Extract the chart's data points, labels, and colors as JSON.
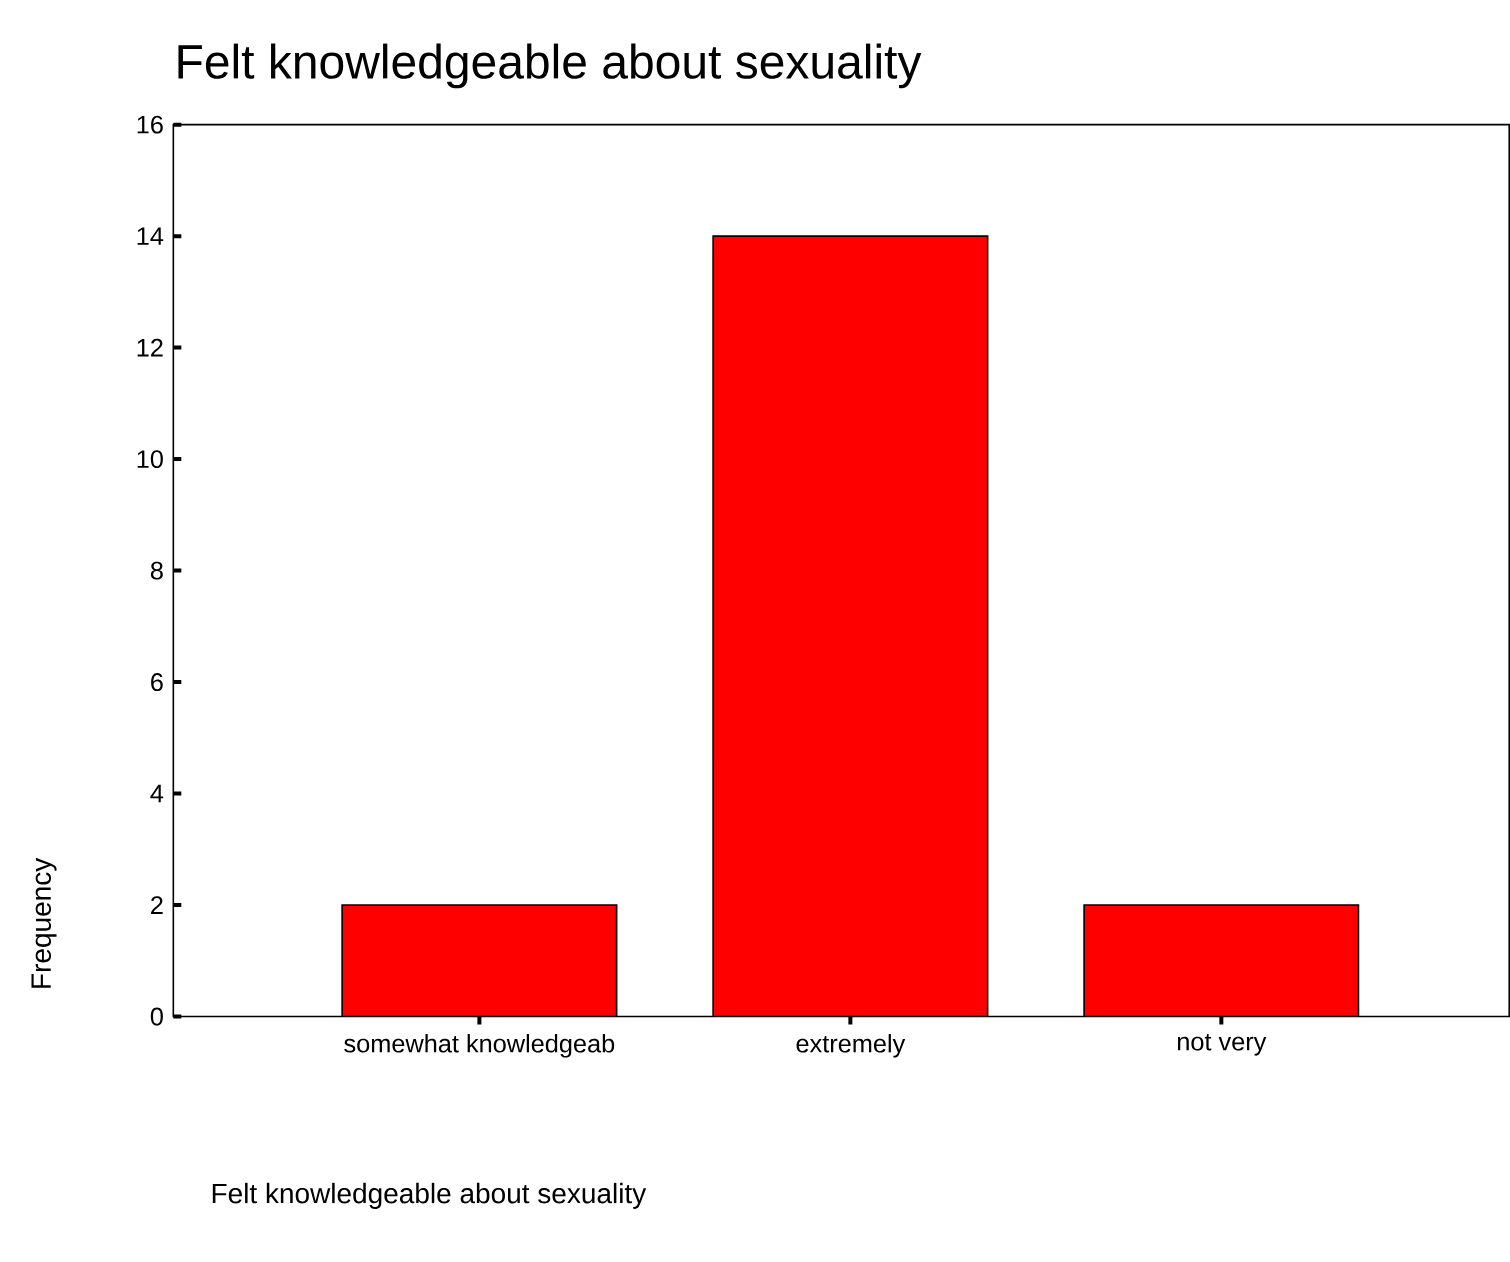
{
  "chart_data": {
    "type": "bar",
    "title": "Felt knowledgeable about sexuality",
    "xlabel": "Felt knowledgeable about sexuality",
    "ylabel": "Frequency",
    "categories": [
      "somewhat knowledgeab",
      "extremely",
      "not very"
    ],
    "values": [
      2,
      14,
      2
    ],
    "color": "#ff0000",
    "ylim": [
      0,
      16
    ],
    "yticks": [
      0,
      2,
      4,
      6,
      8,
      10,
      12,
      14,
      16
    ]
  }
}
